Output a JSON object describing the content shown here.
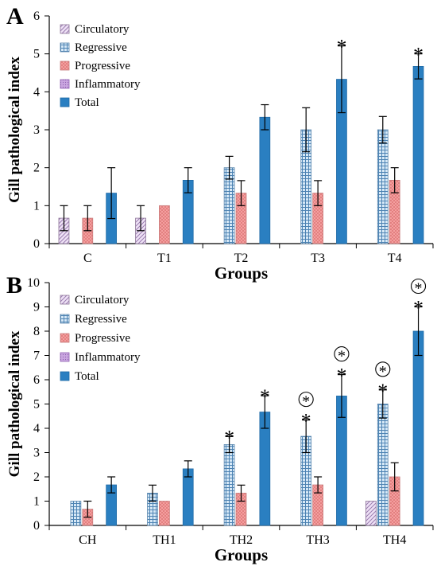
{
  "chart_data": [
    {
      "type": "bar",
      "panel_label": "A",
      "ylabel": "Gill pathological index",
      "xlabel": "Groups",
      "ylim": [
        0,
        6
      ],
      "yticks": [
        0,
        1,
        2,
        3,
        4,
        5,
        6
      ],
      "legend_placement": "top-left",
      "categories": [
        "C",
        "T1",
        "T2",
        "T3",
        "T4"
      ],
      "series": [
        {
          "name": "Circulatory",
          "values": [
            0.67,
            0.67,
            0,
            0,
            0
          ],
          "errors": [
            0.33,
            0.33,
            0,
            0,
            0
          ]
        },
        {
          "name": "Regressive",
          "values": [
            0,
            0,
            2.0,
            3.0,
            3.0
          ],
          "errors": [
            0,
            0,
            0.3,
            0.58,
            0.35
          ]
        },
        {
          "name": "Progressive",
          "values": [
            0.67,
            1.0,
            1.33,
            1.33,
            1.67
          ],
          "errors": [
            0.33,
            0,
            0.33,
            0.33,
            0.33
          ]
        },
        {
          "name": "Inflammatory",
          "values": [
            0,
            0,
            0,
            0,
            0
          ],
          "errors": [
            0,
            0,
            0,
            0,
            0
          ]
        },
        {
          "name": "Total",
          "values": [
            1.33,
            1.67,
            3.33,
            4.33,
            4.67
          ],
          "errors": [
            0.67,
            0.33,
            0.33,
            0.88,
            0.33
          ]
        }
      ],
      "annotations": [
        {
          "category": "T3",
          "series": "Total",
          "marks": [
            "*"
          ]
        },
        {
          "category": "T4",
          "series": "Total",
          "marks": [
            "*"
          ]
        }
      ]
    },
    {
      "type": "bar",
      "panel_label": "B",
      "ylabel": "Gill pathological index",
      "xlabel": "Groups",
      "ylim": [
        0,
        10
      ],
      "yticks": [
        0,
        1,
        2,
        3,
        4,
        5,
        6,
        7,
        8,
        9,
        10
      ],
      "legend_placement": "top-left",
      "categories": [
        "CH",
        "TH1",
        "TH2",
        "TH3",
        "TH4"
      ],
      "series": [
        {
          "name": "Circulatory",
          "values": [
            0,
            0,
            0,
            0,
            1.0
          ],
          "errors": [
            0,
            0,
            0,
            0,
            0
          ]
        },
        {
          "name": "Regressive",
          "values": [
            1.0,
            1.33,
            3.33,
            3.67,
            5.0
          ],
          "errors": [
            0,
            0.33,
            0.33,
            0.67,
            0.58
          ]
        },
        {
          "name": "Progressive",
          "values": [
            0.67,
            1.0,
            1.33,
            1.67,
            2.0
          ],
          "errors": [
            0.33,
            0,
            0.33,
            0.33,
            0.58
          ]
        },
        {
          "name": "Inflammatory",
          "values": [
            0,
            0,
            0,
            0,
            0
          ],
          "errors": [
            0,
            0,
            0,
            0,
            0
          ]
        },
        {
          "name": "Total",
          "values": [
            1.67,
            2.33,
            4.67,
            5.33,
            8.0
          ],
          "errors": [
            0.33,
            0.33,
            0.67,
            0.88,
            1.0
          ]
        }
      ],
      "annotations": [
        {
          "category": "TH2",
          "series": "Regressive",
          "marks": [
            "*"
          ]
        },
        {
          "category": "TH2",
          "series": "Total",
          "marks": [
            "*"
          ]
        },
        {
          "category": "TH3",
          "series": "Regressive",
          "marks": [
            "*",
            "circled-*"
          ]
        },
        {
          "category": "TH3",
          "series": "Total",
          "marks": [
            "*",
            "circled-*"
          ]
        },
        {
          "category": "TH4",
          "series": "Regressive",
          "marks": [
            "*",
            "circled-*"
          ]
        },
        {
          "category": "TH4",
          "series": "Total",
          "marks": [
            "*",
            "circled-*"
          ]
        }
      ]
    }
  ],
  "colors": {
    "circulatory": "#c9a0dc",
    "regressive": "#8ec0e6",
    "progressive": "#f08c8c",
    "inflammatory": "#b07fd0",
    "total": "#2a7fc1",
    "axis": "#000000"
  }
}
